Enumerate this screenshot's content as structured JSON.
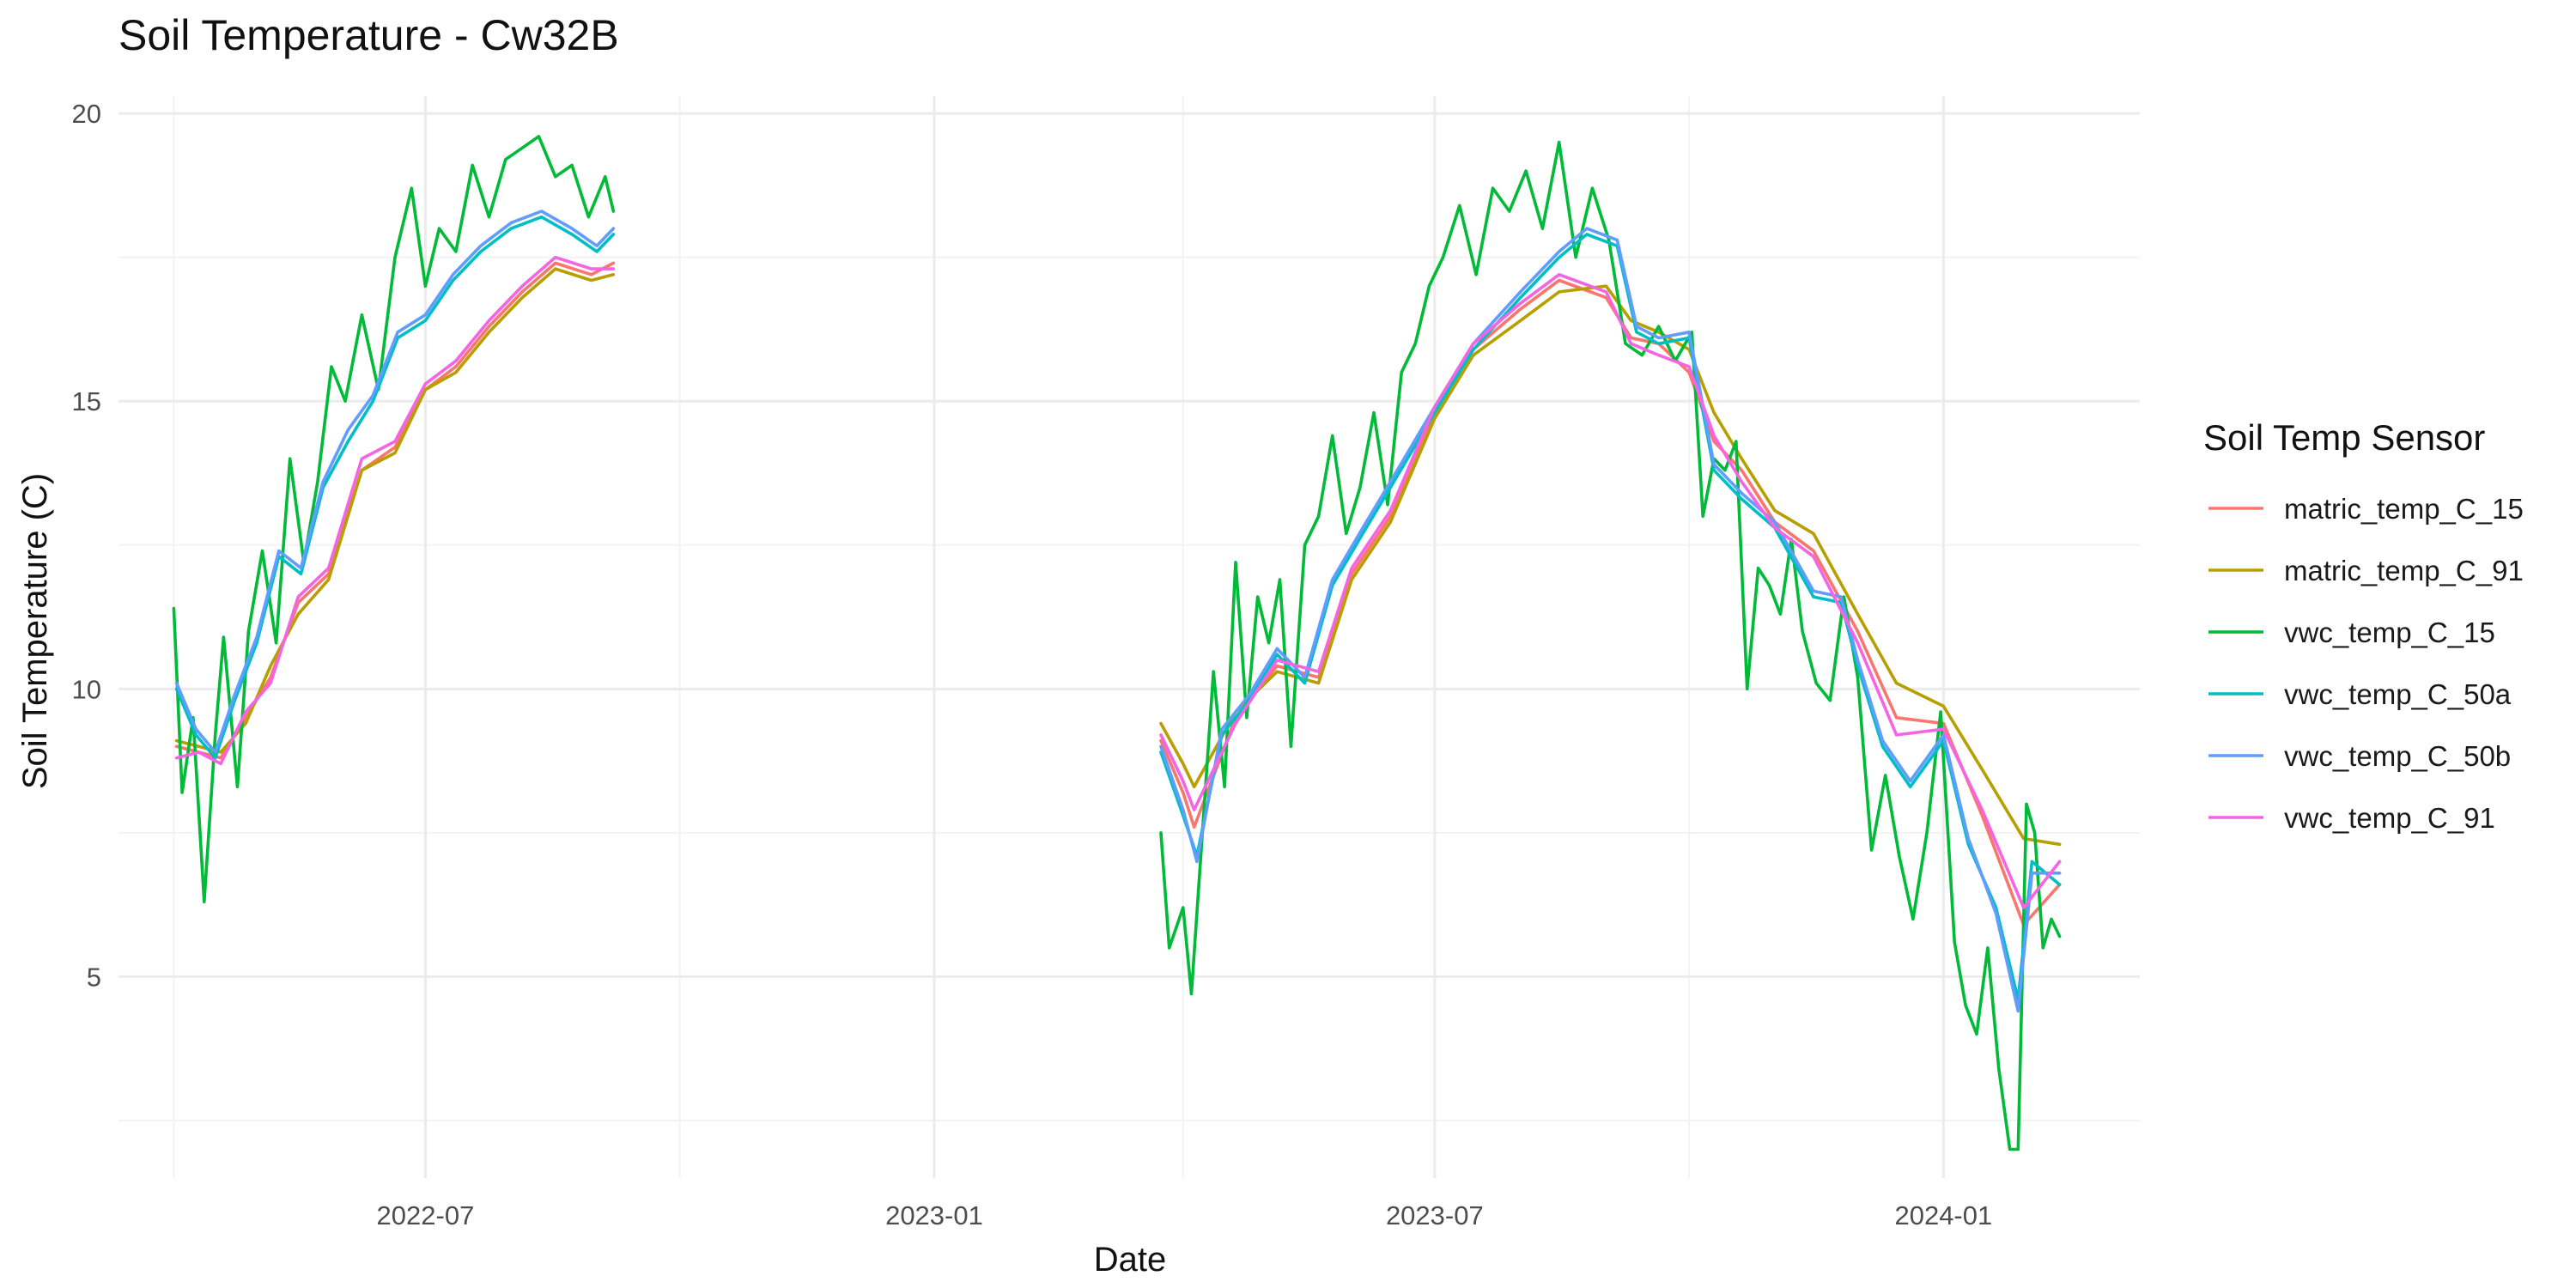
{
  "chart_data": {
    "type": "line",
    "title": "Soil Temperature - Cw32B",
    "xlabel": "Date",
    "ylabel": "Soil Temperature (C)",
    "x_ticks": [
      "2022-07",
      "2023-01",
      "2023-07",
      "2024-01"
    ],
    "x_tick_dates": [
      "2022-07-01",
      "2023-01-01",
      "2023-07-01",
      "2024-01-01"
    ],
    "x_minor_dates": [
      "2022-04-01",
      "2022-10-01",
      "2023-04-01",
      "2023-10-01"
    ],
    "xlim": [
      "2022-03-12",
      "2024-03-12"
    ],
    "y_ticks": [
      5,
      10,
      15,
      20
    ],
    "y_minor": [
      2.5,
      7.5,
      12.5,
      17.5
    ],
    "ylim": [
      1.5,
      20.3
    ],
    "grid": true,
    "legend": {
      "title": "Soil Temp Sensor",
      "position": "right"
    },
    "series": [
      {
        "name": "matric_temp_C_15",
        "color": "#F8766D",
        "segments": [
          {
            "dates": [
              "2022-04-02",
              "2022-04-10",
              "2022-04-18",
              "2022-04-27",
              "2022-05-06",
              "2022-05-16",
              "2022-05-27",
              "2022-06-08",
              "2022-06-20",
              "2022-07-01",
              "2022-07-12",
              "2022-07-24",
              "2022-08-05",
              "2022-08-17",
              "2022-08-30",
              "2022-09-07"
            ],
            "values": [
              9.0,
              8.9,
              8.8,
              9.5,
              10.2,
              11.5,
              12.0,
              13.8,
              14.2,
              15.2,
              15.6,
              16.3,
              16.9,
              17.4,
              17.2,
              17.4
            ]
          },
          {
            "dates": [
              "2023-03-24",
              "2023-04-01",
              "2023-04-05",
              "2023-04-20",
              "2023-05-05",
              "2023-05-20",
              "2023-06-01",
              "2023-06-15",
              "2023-07-01",
              "2023-07-15",
              "2023-08-01",
              "2023-08-15",
              "2023-09-01",
              "2023-09-10",
              "2023-09-20",
              "2023-10-01",
              "2023-10-10",
              "2023-10-20",
              "2023-11-01",
              "2023-11-15",
              "2023-12-01",
              "2023-12-15",
              "2024-01-01",
              "2024-01-15",
              "2024-01-30",
              "2024-02-12"
            ],
            "values": [
              9.1,
              8.2,
              7.6,
              9.5,
              10.4,
              10.2,
              12.0,
              13.0,
              14.8,
              15.9,
              16.6,
              17.1,
              16.8,
              16.1,
              16.0,
              15.5,
              14.3,
              13.8,
              12.9,
              12.4,
              11.0,
              9.5,
              9.4,
              7.8,
              5.9,
              6.6
            ]
          }
        ]
      },
      {
        "name": "matric_temp_C_91",
        "color": "#B79F00",
        "segments": [
          {
            "dates": [
              "2022-04-02",
              "2022-04-10",
              "2022-04-18",
              "2022-04-27",
              "2022-05-06",
              "2022-05-16",
              "2022-05-27",
              "2022-06-08",
              "2022-06-20",
              "2022-07-01",
              "2022-07-12",
              "2022-07-24",
              "2022-08-05",
              "2022-08-17",
              "2022-08-30",
              "2022-09-07"
            ],
            "values": [
              9.1,
              9.0,
              8.9,
              9.4,
              10.4,
              11.3,
              11.9,
              13.8,
              14.1,
              15.2,
              15.5,
              16.2,
              16.8,
              17.3,
              17.1,
              17.2
            ]
          },
          {
            "dates": [
              "2023-03-24",
              "2023-04-01",
              "2023-04-05",
              "2023-04-20",
              "2023-05-05",
              "2023-05-20",
              "2023-06-01",
              "2023-06-15",
              "2023-07-01",
              "2023-07-15",
              "2023-08-01",
              "2023-08-15",
              "2023-09-01",
              "2023-09-10",
              "2023-09-20",
              "2023-10-01",
              "2023-10-10",
              "2023-10-20",
              "2023-11-01",
              "2023-11-15",
              "2023-12-01",
              "2023-12-15",
              "2024-01-01",
              "2024-01-15",
              "2024-01-30",
              "2024-02-12"
            ],
            "values": [
              9.4,
              8.7,
              8.3,
              9.6,
              10.3,
              10.1,
              11.9,
              12.9,
              14.7,
              15.8,
              16.4,
              16.9,
              17.0,
              16.4,
              16.2,
              15.9,
              14.8,
              14.0,
              13.1,
              12.7,
              11.3,
              10.1,
              9.7,
              8.6,
              7.4,
              7.3
            ]
          }
        ]
      },
      {
        "name": "vwc_temp_C_15",
        "color": "#00BA38",
        "segments": [
          {
            "dates": [
              "2022-04-01",
              "2022-04-04",
              "2022-04-08",
              "2022-04-12",
              "2022-04-16",
              "2022-04-19",
              "2022-04-24",
              "2022-04-28",
              "2022-05-03",
              "2022-05-08",
              "2022-05-13",
              "2022-05-18",
              "2022-05-23",
              "2022-05-28",
              "2022-06-02",
              "2022-06-08",
              "2022-06-14",
              "2022-06-20",
              "2022-06-26",
              "2022-07-01",
              "2022-07-06",
              "2022-07-12",
              "2022-07-18",
              "2022-07-24",
              "2022-07-30",
              "2022-08-05",
              "2022-08-11",
              "2022-08-17",
              "2022-08-23",
              "2022-08-29",
              "2022-09-04",
              "2022-09-07"
            ],
            "values": [
              11.4,
              8.2,
              9.5,
              6.3,
              9.2,
              10.9,
              8.3,
              11.0,
              12.4,
              10.8,
              14.0,
              12.2,
              13.6,
              15.6,
              15.0,
              16.5,
              15.2,
              17.5,
              18.7,
              17.0,
              18.0,
              17.6,
              19.1,
              18.2,
              19.2,
              19.4,
              19.6,
              18.9,
              19.1,
              18.2,
              18.9,
              18.3
            ]
          },
          {
            "dates": [
              "2023-03-24",
              "2023-03-27",
              "2023-04-01",
              "2023-04-04",
              "2023-04-08",
              "2023-04-12",
              "2023-04-16",
              "2023-04-20",
              "2023-04-24",
              "2023-04-28",
              "2023-05-02",
              "2023-05-06",
              "2023-05-10",
              "2023-05-15",
              "2023-05-20",
              "2023-05-25",
              "2023-05-30",
              "2023-06-04",
              "2023-06-09",
              "2023-06-14",
              "2023-06-19",
              "2023-06-24",
              "2023-06-29",
              "2023-07-04",
              "2023-07-10",
              "2023-07-16",
              "2023-07-22",
              "2023-07-28",
              "2023-08-03",
              "2023-08-09",
              "2023-08-15",
              "2023-08-21",
              "2023-08-27",
              "2023-09-02",
              "2023-09-08",
              "2023-09-14",
              "2023-09-20",
              "2023-09-26",
              "2023-10-02",
              "2023-10-06",
              "2023-10-10",
              "2023-10-14",
              "2023-10-18",
              "2023-10-22",
              "2023-10-26",
              "2023-10-30",
              "2023-11-03",
              "2023-11-07",
              "2023-11-11",
              "2023-11-16",
              "2023-11-21",
              "2023-11-26",
              "2023-12-01",
              "2023-12-06",
              "2023-12-11",
              "2023-12-16",
              "2023-12-21",
              "2023-12-26",
              "2023-12-31",
              "2024-01-05",
              "2024-01-09",
              "2024-01-13",
              "2024-01-17",
              "2024-01-21",
              "2024-01-25",
              "2024-01-28",
              "2024-01-31",
              "2024-02-03",
              "2024-02-06",
              "2024-02-09",
              "2024-02-12"
            ],
            "values": [
              7.5,
              5.5,
              6.2,
              4.7,
              7.5,
              10.3,
              8.3,
              12.2,
              9.5,
              11.6,
              10.8,
              11.9,
              9.0,
              12.5,
              13.0,
              14.4,
              12.7,
              13.5,
              14.8,
              13.2,
              15.5,
              16.0,
              17.0,
              17.5,
              18.4,
              17.2,
              18.7,
              18.3,
              19.0,
              18.0,
              19.5,
              17.5,
              18.7,
              17.8,
              16.0,
              15.8,
              16.3,
              15.7,
              16.2,
              13.0,
              14.0,
              13.8,
              14.3,
              10.0,
              12.1,
              11.8,
              11.3,
              12.6,
              11.0,
              10.1,
              9.8,
              11.6,
              10.2,
              7.2,
              8.5,
              7.1,
              6.0,
              7.5,
              9.6,
              5.6,
              4.5,
              4.0,
              5.5,
              3.4,
              2.0,
              2.0,
              8.0,
              7.5,
              5.5,
              6.0,
              5.7
            ]
          }
        ]
      },
      {
        "name": "vwc_temp_C_50a",
        "color": "#00BFC4",
        "segments": [
          {
            "dates": [
              "2022-04-02",
              "2022-04-09",
              "2022-04-16",
              "2022-04-23",
              "2022-05-01",
              "2022-05-09",
              "2022-05-17",
              "2022-05-25",
              "2022-06-03",
              "2022-06-12",
              "2022-06-21",
              "2022-07-01",
              "2022-07-11",
              "2022-07-21",
              "2022-08-01",
              "2022-08-12",
              "2022-08-23",
              "2022-09-01",
              "2022-09-07"
            ],
            "values": [
              10.0,
              9.2,
              8.8,
              9.8,
              10.8,
              12.3,
              12.0,
              13.5,
              14.3,
              15.0,
              16.1,
              16.4,
              17.1,
              17.6,
              18.0,
              18.2,
              17.9,
              17.6,
              17.9
            ]
          },
          {
            "dates": [
              "2023-03-24",
              "2023-04-01",
              "2023-04-06",
              "2023-04-15",
              "2023-04-25",
              "2023-05-05",
              "2023-05-15",
              "2023-05-25",
              "2023-06-05",
              "2023-06-15",
              "2023-07-01",
              "2023-07-15",
              "2023-08-01",
              "2023-08-15",
              "2023-08-25",
              "2023-09-05",
              "2023-09-12",
              "2023-09-20",
              "2023-10-01",
              "2023-10-10",
              "2023-10-20",
              "2023-11-01",
              "2023-11-15",
              "2023-11-25",
              "2023-12-01",
              "2023-12-10",
              "2023-12-20",
              "2024-01-01",
              "2024-01-10",
              "2024-01-20",
              "2024-01-28",
              "2024-02-02",
              "2024-02-12"
            ],
            "values": [
              8.9,
              7.8,
              7.1,
              9.2,
              9.8,
              10.6,
              10.1,
              11.8,
              12.7,
              13.5,
              14.8,
              15.9,
              16.8,
              17.5,
              17.9,
              17.7,
              16.2,
              16.0,
              16.1,
              13.8,
              13.3,
              12.8,
              11.6,
              11.5,
              10.4,
              9.0,
              8.3,
              9.1,
              7.3,
              6.2,
              4.6,
              7.0,
              6.6
            ]
          }
        ]
      },
      {
        "name": "vwc_temp_C_50b",
        "color": "#619CFF",
        "segments": [
          {
            "dates": [
              "2022-04-02",
              "2022-04-09",
              "2022-04-16",
              "2022-04-23",
              "2022-05-01",
              "2022-05-09",
              "2022-05-17",
              "2022-05-25",
              "2022-06-03",
              "2022-06-12",
              "2022-06-21",
              "2022-07-01",
              "2022-07-11",
              "2022-07-21",
              "2022-08-01",
              "2022-08-12",
              "2022-08-23",
              "2022-09-01",
              "2022-09-07"
            ],
            "values": [
              10.1,
              9.3,
              8.9,
              9.9,
              10.9,
              12.4,
              12.1,
              13.6,
              14.5,
              15.1,
              16.2,
              16.5,
              17.2,
              17.7,
              18.1,
              18.3,
              18.0,
              17.7,
              18.0
            ]
          },
          {
            "dates": [
              "2023-03-24",
              "2023-04-01",
              "2023-04-06",
              "2023-04-15",
              "2023-04-25",
              "2023-05-05",
              "2023-05-15",
              "2023-05-25",
              "2023-06-05",
              "2023-06-15",
              "2023-07-01",
              "2023-07-15",
              "2023-08-01",
              "2023-08-15",
              "2023-08-25",
              "2023-09-05",
              "2023-09-12",
              "2023-09-20",
              "2023-10-01",
              "2023-10-10",
              "2023-10-20",
              "2023-11-01",
              "2023-11-15",
              "2023-11-25",
              "2023-12-01",
              "2023-12-10",
              "2023-12-20",
              "2024-01-01",
              "2024-01-10",
              "2024-01-20",
              "2024-01-28",
              "2024-02-02",
              "2024-02-12"
            ],
            "values": [
              9.0,
              7.9,
              7.0,
              9.3,
              9.9,
              10.7,
              10.2,
              11.9,
              12.8,
              13.6,
              14.9,
              16.0,
              16.9,
              17.6,
              18.0,
              17.8,
              16.3,
              16.1,
              16.2,
              13.9,
              13.4,
              12.9,
              11.7,
              11.6,
              10.5,
              9.1,
              8.4,
              9.2,
              7.4,
              6.1,
              4.4,
              6.8,
              6.8
            ]
          }
        ]
      },
      {
        "name": "vwc_temp_C_91",
        "color": "#F564E3",
        "segments": [
          {
            "dates": [
              "2022-04-02",
              "2022-04-10",
              "2022-04-18",
              "2022-04-27",
              "2022-05-06",
              "2022-05-16",
              "2022-05-27",
              "2022-06-08",
              "2022-06-20",
              "2022-07-01",
              "2022-07-12",
              "2022-07-24",
              "2022-08-05",
              "2022-08-17",
              "2022-08-30",
              "2022-09-07"
            ],
            "values": [
              8.8,
              8.9,
              8.7,
              9.6,
              10.1,
              11.6,
              12.1,
              14.0,
              14.3,
              15.3,
              15.7,
              16.4,
              17.0,
              17.5,
              17.3,
              17.3
            ]
          },
          {
            "dates": [
              "2023-03-24",
              "2023-04-01",
              "2023-04-05",
              "2023-04-20",
              "2023-05-05",
              "2023-05-20",
              "2023-06-01",
              "2023-06-15",
              "2023-07-01",
              "2023-07-15",
              "2023-08-01",
              "2023-08-15",
              "2023-09-01",
              "2023-09-10",
              "2023-09-20",
              "2023-10-01",
              "2023-10-10",
              "2023-10-20",
              "2023-11-01",
              "2023-11-15",
              "2023-12-01",
              "2023-12-15",
              "2024-01-01",
              "2024-01-15",
              "2024-01-30",
              "2024-02-12"
            ],
            "values": [
              9.2,
              8.4,
              7.9,
              9.4,
              10.5,
              10.3,
              12.1,
              13.1,
              14.9,
              16.0,
              16.7,
              17.2,
              16.9,
              16.0,
              15.8,
              15.6,
              14.4,
              13.6,
              12.8,
              12.3,
              10.8,
              9.2,
              9.3,
              7.9,
              6.2,
              7.0
            ]
          }
        ]
      }
    ]
  }
}
